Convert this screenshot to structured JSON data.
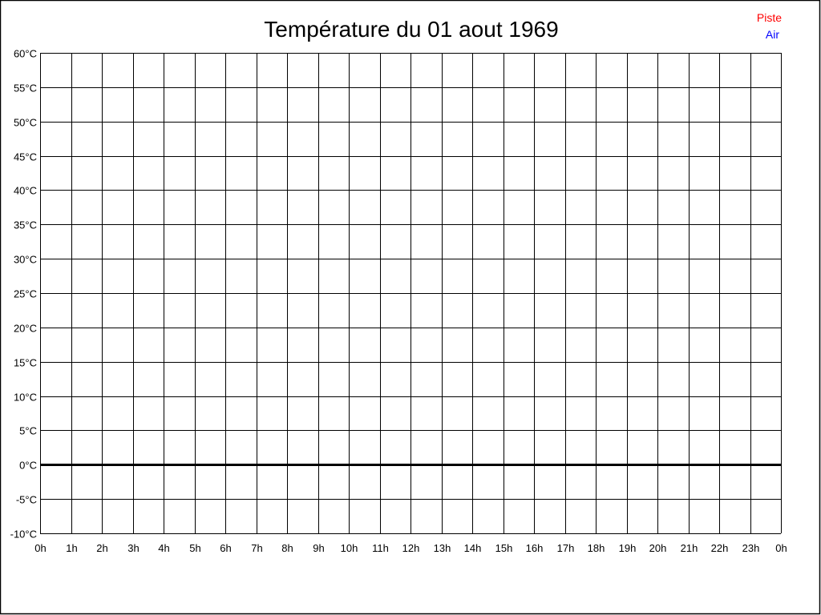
{
  "chart_data": {
    "type": "line",
    "title": "Température du 01 aout 1969",
    "xlabel": "",
    "ylabel": "",
    "x_ticks": [
      "0h",
      "1h",
      "2h",
      "3h",
      "4h",
      "5h",
      "6h",
      "7h",
      "8h",
      "9h",
      "10h",
      "11h",
      "12h",
      "13h",
      "14h",
      "15h",
      "16h",
      "17h",
      "18h",
      "19h",
      "20h",
      "21h",
      "22h",
      "23h",
      "0h"
    ],
    "y_ticks": [
      "60°C",
      "55°C",
      "50°C",
      "45°C",
      "40°C",
      "35°C",
      "30°C",
      "25°C",
      "20°C",
      "15°C",
      "10°C",
      "5°C",
      "0°C",
      "-5°C",
      "-10°C"
    ],
    "ylim": [
      -10,
      60
    ],
    "xlim": [
      0,
      24
    ],
    "grid": true,
    "legend_position": "top-right",
    "series": [
      {
        "name": "Piste",
        "color": "#ff0000",
        "values": []
      },
      {
        "name": "Air",
        "color": "#0000ff",
        "values": []
      }
    ]
  }
}
